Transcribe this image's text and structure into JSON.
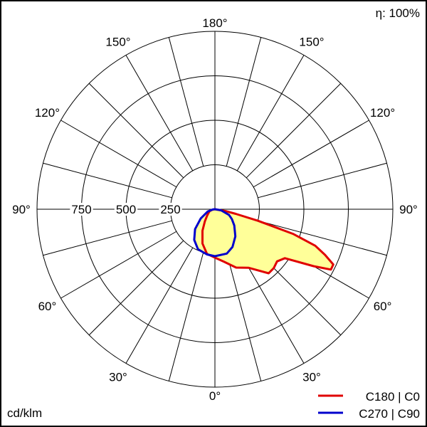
{
  "chart_data": {
    "type": "polar",
    "unit_label": "cd/klm",
    "efficiency_label": "η: 100%",
    "radial_ticks": [
      250,
      500,
      750
    ],
    "radial_max": 1000,
    "angle_ticks": [
      0,
      30,
      60,
      90,
      120,
      150,
      180
    ],
    "angle_tick_suffix": "°",
    "spoke_step_deg": 15,
    "fill_color": "#ffff99",
    "series": [
      {
        "name": "C180 | C0",
        "color": "#e00000",
        "right_plane": "C0",
        "left_plane": "C180",
        "right": [
          [
            0,
            272
          ],
          [
            10,
            300
          ],
          [
            20,
            349
          ],
          [
            30,
            380
          ],
          [
            40,
            470
          ],
          [
            45,
            468
          ],
          [
            50,
            456
          ],
          [
            55,
            480
          ],
          [
            60,
            640
          ],
          [
            62.5,
            735
          ],
          [
            65,
            734
          ],
          [
            67.5,
            670
          ],
          [
            70,
            600
          ],
          [
            72.5,
            460
          ],
          [
            75,
            250
          ],
          [
            77.5,
            120
          ],
          [
            80,
            60
          ],
          [
            90,
            0
          ]
        ],
        "left": [
          [
            0,
            272
          ],
          [
            10,
            255
          ],
          [
            20,
            205
          ],
          [
            30,
            140
          ],
          [
            40,
            88
          ],
          [
            50,
            58
          ],
          [
            60,
            42
          ],
          [
            70,
            32
          ],
          [
            80,
            15
          ],
          [
            90,
            0
          ]
        ]
      },
      {
        "name": "C270 | C90",
        "color": "#0000cc",
        "right_plane": "C90",
        "left_plane": "C270",
        "right": [
          [
            0,
            264
          ],
          [
            15,
            258
          ],
          [
            25,
            234
          ],
          [
            37,
            191
          ],
          [
            50,
            142
          ],
          [
            60,
            110
          ],
          [
            68,
            86
          ],
          [
            80,
            35
          ],
          [
            90,
            0
          ]
        ],
        "left": [
          [
            0,
            264
          ],
          [
            10,
            258
          ],
          [
            23,
            244
          ],
          [
            34,
            208
          ],
          [
            45,
            158
          ],
          [
            57,
            95
          ],
          [
            73,
            42
          ],
          [
            85,
            10
          ],
          [
            90,
            0
          ]
        ]
      }
    ]
  }
}
